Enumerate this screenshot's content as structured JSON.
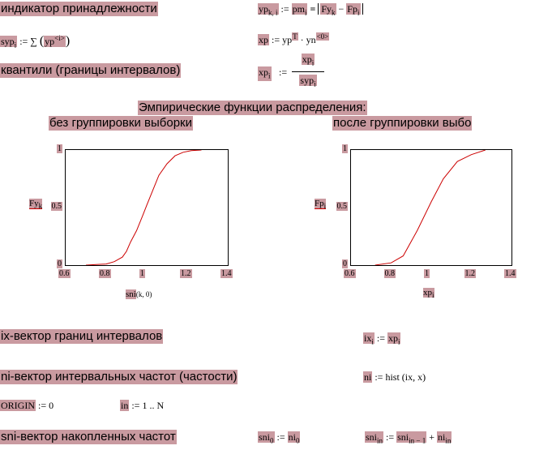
{
  "texts": {
    "indicator": "индикатор принадлежности",
    "quantiles": "квантили (границы интервалов)",
    "emp_title": "Эмпирические функции распределения:",
    "no_group": "без группировки выборки",
    "after_group": "после группировки выбо",
    "ix_vector": "ix-вектор границ интервалов",
    "ni_vector": "ni-вектор интервальных частот (частости)",
    "sni_vector": "sni-вектор накопленных частот"
  },
  "formulas": {
    "yp_lhs": "yp",
    "yp_sub": "k, i",
    "yp_assign": ":=",
    "pm": "pm",
    "pm_sub": "i",
    "eq": "=",
    "Fy": "Fy",
    "Fy_sub": "k",
    "minus": "−",
    "Fp": "Fp",
    "Fp_sub": "i",
    "syp": "syp",
    "syp_sub": "i",
    "sum": ":= ∑",
    "yp2": "yp",
    "yp2_sup": "<i>",
    "xp": "xp",
    "xp_rhs": ":= yp",
    "T": "T",
    "dot_yn": "· yn",
    "yn_sup": "<0>",
    "xp_q": "xp",
    "xp_q_sub": "i",
    "frac_num": "xp",
    "frac_num_sub": "i",
    "frac_den": "syp",
    "frac_den_sub": "i",
    "ix": "ix",
    "ix_sub": "i",
    "ix_rhs": "xp",
    "ix_rhs_sub": "i",
    "ni": "ni",
    "ni_rhs": ":= hist (ix, x)",
    "origin": "ORIGIN",
    "origin_rhs": ":= 0",
    "in_var": "in",
    "in_rhs": ":= 1 .. N",
    "sni0": "sni",
    "sni0_sub": "0",
    "ni0": "ni",
    "ni0_sub": "0",
    "sni_in": "sni",
    "sni_in_sub": "in",
    "sni_prev": "sni",
    "sni_prev_sub": "in − 1",
    "plus": "+",
    "ni_in": "ni",
    "ni_in_sub": "in"
  },
  "colors": {
    "highlight": "#c99aa0",
    "curve": "#cc0000"
  },
  "chart_data": [
    {
      "type": "line",
      "title": "без группировки выборки",
      "xlabel": "sni(k, 0)",
      "ylabel": "Fy_k",
      "xlim": [
        0.6,
        1.4
      ],
      "ylim": [
        0,
        1
      ],
      "xticks": [
        "0.6",
        "0.8",
        "1",
        "1.2",
        "1.4"
      ],
      "yticks": [
        "0",
        "0.5",
        "1"
      ],
      "series": [
        {
          "x": [
            0.7,
            0.75,
            0.8,
            0.84,
            0.88,
            0.9,
            0.92,
            0.95,
            0.98,
            1.0,
            1.03,
            1.06,
            1.1,
            1.14,
            1.18,
            1.22,
            1.27
          ],
          "y": [
            0.0,
            0.005,
            0.01,
            0.03,
            0.07,
            0.12,
            0.2,
            0.3,
            0.43,
            0.52,
            0.65,
            0.78,
            0.88,
            0.95,
            0.98,
            0.995,
            1.0
          ]
        }
      ]
    },
    {
      "type": "line",
      "title": "после группировки выбо",
      "xlabel": "xp_i",
      "ylabel": "Fp_i",
      "xlim": [
        0.6,
        1.4
      ],
      "ylim": [
        0,
        1
      ],
      "xticks": [
        "0.6",
        "0.8",
        "1",
        "1.2",
        "1.4"
      ],
      "yticks": [
        "0",
        "0.5",
        "1"
      ],
      "series": [
        {
          "x": [
            0.72,
            0.8,
            0.86,
            0.93,
            1.0,
            1.06,
            1.13,
            1.2,
            1.27
          ],
          "y": [
            0.0,
            0.02,
            0.08,
            0.3,
            0.55,
            0.75,
            0.9,
            0.96,
            1.0
          ]
        }
      ]
    }
  ]
}
